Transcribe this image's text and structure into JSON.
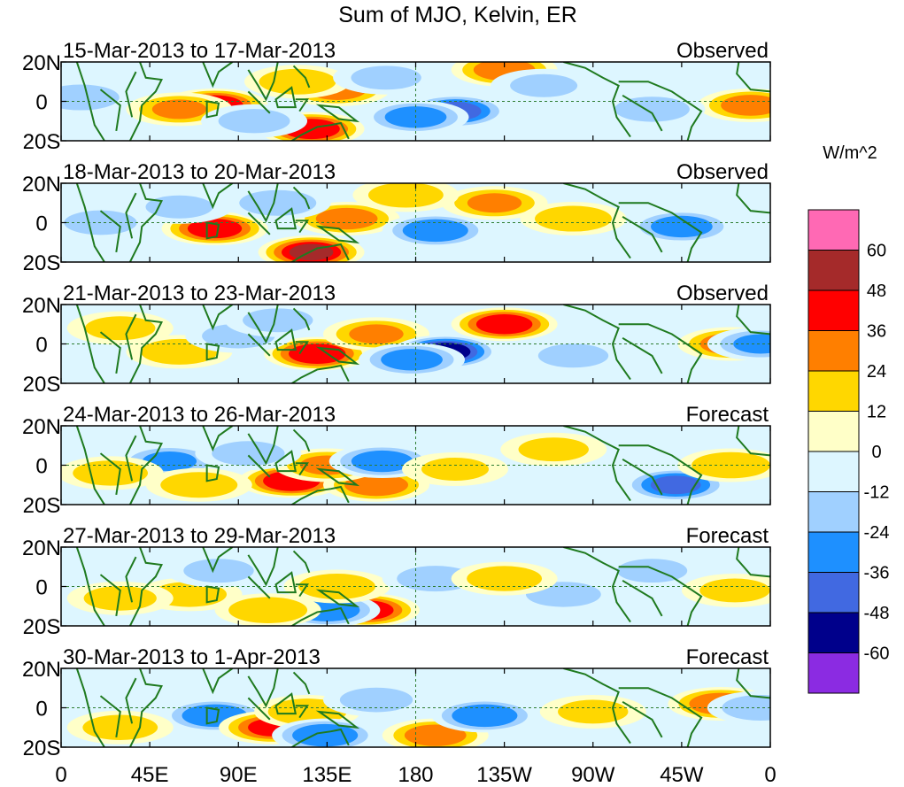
{
  "chart_data": {
    "type": "heatmap",
    "title": "Sum of MJO, Kelvin, ER",
    "colorbar": {
      "units": "W/m^2",
      "tick_labels": [
        "60",
        "48",
        "36",
        "24",
        "12",
        "0",
        "-12",
        "-24",
        "-36",
        "-48",
        "-60"
      ],
      "levels": [
        60,
        48,
        36,
        24,
        12,
        0,
        -12,
        -24,
        -36,
        -48,
        -60
      ],
      "colors": [
        "#ff69b4",
        "#a52a2a",
        "#ff0000",
        "#ff7f00",
        "#ffd700",
        "#ffffc8",
        "#ddf6ff",
        "#a0d0ff",
        "#1e90ff",
        "#4169e1",
        "#00008b",
        "#8b2be2"
      ]
    },
    "x_axis": {
      "tick_labels": [
        "0",
        "45E",
        "90E",
        "135E",
        "180",
        "135W",
        "90W",
        "45W",
        "0"
      ],
      "tick_lon": [
        0,
        45,
        90,
        135,
        180,
        225,
        270,
        315,
        360
      ],
      "range": [
        0,
        360
      ]
    },
    "y_axis": {
      "tick_labels": [
        "20N",
        "0",
        "20S"
      ],
      "tick_lat": [
        20,
        0,
        -20
      ],
      "range": [
        -20,
        20
      ]
    },
    "panels": [
      {
        "date_range": "15-Mar-2013 to 17-Mar-2013",
        "kind": "Observed",
        "blobs": [
          {
            "lon": 78,
            "lat": -2,
            "val": 45
          },
          {
            "lon": 60,
            "lat": -4,
            "val": 24
          },
          {
            "lon": 127,
            "lat": -14,
            "val": 45
          },
          {
            "lon": 140,
            "lat": 6,
            "val": 28
          },
          {
            "lon": 120,
            "lat": 10,
            "val": 20
          },
          {
            "lon": 225,
            "lat": 16,
            "val": 30
          },
          {
            "lon": 200,
            "lat": -5,
            "val": -40
          },
          {
            "lon": 180,
            "lat": -8,
            "val": -30
          },
          {
            "lon": 350,
            "lat": -2,
            "val": 28
          },
          {
            "lon": 10,
            "lat": 2,
            "val": -20
          },
          {
            "lon": 98,
            "lat": -10,
            "val": -15
          },
          {
            "lon": 300,
            "lat": -4,
            "val": -18
          },
          {
            "lon": 245,
            "lat": 8,
            "val": -12
          },
          {
            "lon": 165,
            "lat": 12,
            "val": -14
          }
        ]
      },
      {
        "date_range": "18-Mar-2013 to 20-Mar-2013",
        "kind": "Observed",
        "blobs": [
          {
            "lon": 78,
            "lat": -3,
            "val": 42
          },
          {
            "lon": 127,
            "lat": -15,
            "val": 48
          },
          {
            "lon": 145,
            "lat": 2,
            "val": 30
          },
          {
            "lon": 220,
            "lat": 10,
            "val": 24
          },
          {
            "lon": 260,
            "lat": 2,
            "val": 20
          },
          {
            "lon": 190,
            "lat": -4,
            "val": -34
          },
          {
            "lon": 315,
            "lat": -2,
            "val": -30
          },
          {
            "lon": 110,
            "lat": 10,
            "val": -20
          },
          {
            "lon": 20,
            "lat": 0,
            "val": -16
          },
          {
            "lon": 60,
            "lat": 8,
            "val": -12
          },
          {
            "lon": 175,
            "lat": 14,
            "val": 18
          }
        ]
      },
      {
        "date_range": "21-Mar-2013 to 23-Mar-2013",
        "kind": "Observed",
        "blobs": [
          {
            "lon": 130,
            "lat": -5,
            "val": 45
          },
          {
            "lon": 225,
            "lat": 10,
            "val": 44
          },
          {
            "lon": 160,
            "lat": 5,
            "val": 24
          },
          {
            "lon": 195,
            "lat": -4,
            "val": -55
          },
          {
            "lon": 178,
            "lat": -8,
            "val": -30
          },
          {
            "lon": 340,
            "lat": 0,
            "val": 30
          },
          {
            "lon": 355,
            "lat": 0,
            "val": -24
          },
          {
            "lon": 60,
            "lat": -4,
            "val": 20
          },
          {
            "lon": 90,
            "lat": 4,
            "val": -16
          },
          {
            "lon": 30,
            "lat": 8,
            "val": 14
          },
          {
            "lon": 260,
            "lat": -6,
            "val": -14
          },
          {
            "lon": 110,
            "lat": 12,
            "val": -14
          }
        ]
      },
      {
        "date_range": "24-Mar-2013 to 26-Mar-2013",
        "kind": "Forecast",
        "blobs": [
          {
            "lon": 117,
            "lat": -8,
            "val": 45
          },
          {
            "lon": 160,
            "lat": -10,
            "val": 32
          },
          {
            "lon": 135,
            "lat": 0,
            "val": 24
          },
          {
            "lon": 312,
            "lat": -10,
            "val": -38
          },
          {
            "lon": 163,
            "lat": 2,
            "val": -30
          },
          {
            "lon": 55,
            "lat": 2,
            "val": -24
          },
          {
            "lon": 70,
            "lat": -10,
            "val": 20
          },
          {
            "lon": 25,
            "lat": -4,
            "val": 18
          },
          {
            "lon": 340,
            "lat": 0,
            "val": 22
          },
          {
            "lon": 250,
            "lat": 8,
            "val": 14
          },
          {
            "lon": 200,
            "lat": -2,
            "val": 12
          },
          {
            "lon": 95,
            "lat": 6,
            "val": -16
          }
        ]
      },
      {
        "date_range": "27-Mar-2013 to 29-Mar-2013",
        "kind": "Forecast",
        "blobs": [
          {
            "lon": 155,
            "lat": -12,
            "val": 42
          },
          {
            "lon": 135,
            "lat": -12,
            "val": -34
          },
          {
            "lon": 140,
            "lat": 0,
            "val": 20
          },
          {
            "lon": 105,
            "lat": -12,
            "val": 22
          },
          {
            "lon": 65,
            "lat": -4,
            "val": 18
          },
          {
            "lon": 30,
            "lat": -6,
            "val": 16
          },
          {
            "lon": 190,
            "lat": 4,
            "val": -20
          },
          {
            "lon": 255,
            "lat": -4,
            "val": -18
          },
          {
            "lon": 300,
            "lat": 8,
            "val": -14
          },
          {
            "lon": 225,
            "lat": 4,
            "val": 18
          },
          {
            "lon": 80,
            "lat": 8,
            "val": -14
          },
          {
            "lon": 342,
            "lat": -2,
            "val": 14
          }
        ]
      },
      {
        "date_range": "30-Mar-2013 to 1-Apr-2013",
        "kind": "Forecast",
        "blobs": [
          {
            "lon": 78,
            "lat": -4,
            "val": -34
          },
          {
            "lon": 107,
            "lat": -10,
            "val": 36
          },
          {
            "lon": 125,
            "lat": -2,
            "val": 22
          },
          {
            "lon": 134,
            "lat": -14,
            "val": -34
          },
          {
            "lon": 190,
            "lat": -14,
            "val": 30
          },
          {
            "lon": 215,
            "lat": -4,
            "val": -34
          },
          {
            "lon": 335,
            "lat": 2,
            "val": 32
          },
          {
            "lon": 30,
            "lat": -10,
            "val": 18
          },
          {
            "lon": 160,
            "lat": 4,
            "val": -16
          },
          {
            "lon": 270,
            "lat": -2,
            "val": 14
          },
          {
            "lon": 355,
            "lat": 0,
            "val": -20
          }
        ]
      }
    ]
  }
}
